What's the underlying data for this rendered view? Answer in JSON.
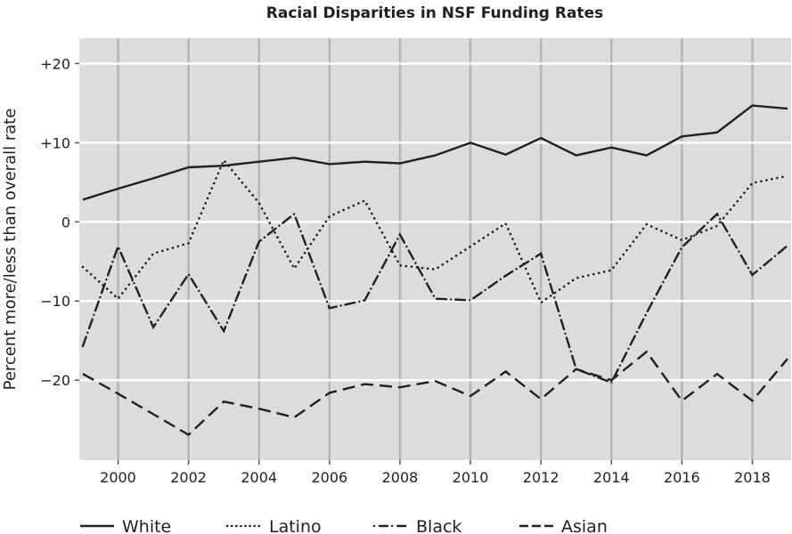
{
  "chart_data": {
    "type": "line",
    "title": "Racial Disparities in NSF Funding Rates",
    "xlabel": "",
    "ylabel": "Percent more/less than overall rate",
    "x": [
      1999,
      2000,
      2001,
      2002,
      2003,
      2004,
      2005,
      2006,
      2007,
      2008,
      2009,
      2010,
      2011,
      2012,
      2013,
      2014,
      2015,
      2016,
      2017,
      2018,
      2019
    ],
    "xlim": [
      1998.9,
      2019.1
    ],
    "ylim": [
      -30.1,
      23.2
    ],
    "x_ticks": [
      2000,
      2002,
      2004,
      2006,
      2008,
      2010,
      2012,
      2014,
      2016,
      2018
    ],
    "x_tick_labels": [
      "2000",
      "2002",
      "2004",
      "2006",
      "2008",
      "2010",
      "2012",
      "2014",
      "2016",
      "2018"
    ],
    "y_ticks": [
      20,
      10,
      0,
      -10,
      -20
    ],
    "y_tick_labels": [
      "+20",
      "+10",
      "0",
      "−10",
      "−20"
    ],
    "grid": true,
    "legend_position": "bottom",
    "series": [
      {
        "name": "White",
        "style": "solid",
        "color": "#231f20",
        "values": [
          2.8,
          4.2,
          5.5,
          6.9,
          7.1,
          7.6,
          8.1,
          7.3,
          7.6,
          7.4,
          8.4,
          10.0,
          8.5,
          10.6,
          8.4,
          9.4,
          8.4,
          10.8,
          11.3,
          14.7,
          14.3
        ]
      },
      {
        "name": "Latino",
        "style": "dotted",
        "color": "#231f20",
        "values": [
          -5.7,
          -9.7,
          -4.0,
          -2.7,
          7.8,
          2.4,
          -5.9,
          0.7,
          2.7,
          -5.5,
          -6.0,
          -3.1,
          -0.2,
          -10.2,
          -7.1,
          -6.1,
          -0.3,
          -2.3,
          -0.5,
          4.9,
          5.8
        ]
      },
      {
        "name": "Black",
        "style": "dashdot",
        "color": "#231f20",
        "values": [
          -15.7,
          -3.1,
          -13.3,
          -6.6,
          -13.8,
          -2.5,
          1.0,
          -10.9,
          -9.9,
          -1.6,
          -9.7,
          -9.9,
          -6.8,
          -4.0,
          -18.6,
          -20.3,
          -11.5,
          -3.2,
          1.0,
          -6.7,
          -3.0
        ]
      },
      {
        "name": "Asian",
        "style": "dashed",
        "color": "#231f20",
        "values": [
          -19.2,
          -21.7,
          -24.3,
          -26.9,
          -22.7,
          -23.6,
          -24.7,
          -21.6,
          -20.5,
          -20.9,
          -20.1,
          -22.0,
          -18.9,
          -22.4,
          -18.6,
          -20.0,
          -16.4,
          -22.6,
          -19.2,
          -22.6,
          -17.3
        ]
      }
    ],
    "colors": {
      "plot_background": "#dcdcdd",
      "vertical_grid": "#b4b4b6",
      "horizontal_grid": "#ffffff",
      "ink": "#231f20"
    }
  }
}
